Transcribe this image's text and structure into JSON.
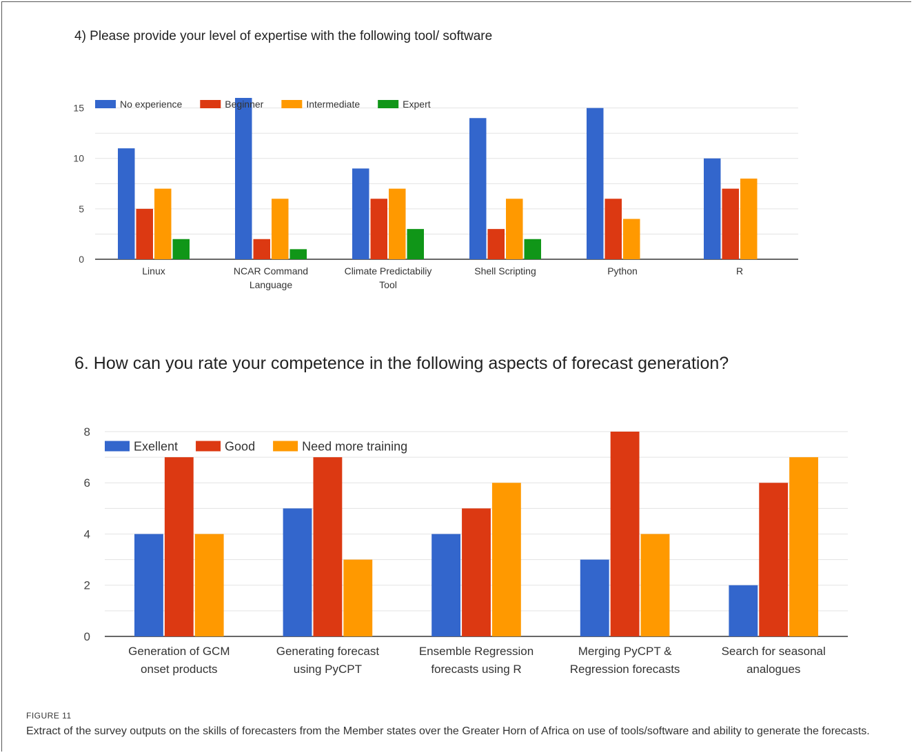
{
  "figure": {
    "label": "FIGURE 11",
    "caption": "Extract of the survey outputs on the skills of forecasters from the Member states over the Greater Horn of Africa on use of tools/software and ability to generate the forecasts."
  },
  "chart_data": [
    {
      "type": "bar",
      "title": "4) Please provide your level of expertise with the following tool/ software",
      "categories": [
        [
          "Linux"
        ],
        [
          "NCAR Command",
          "Language"
        ],
        [
          "Climate Predictabiliy",
          "Tool"
        ],
        [
          "Shell Scripting"
        ],
        [
          "Python"
        ],
        [
          "R"
        ]
      ],
      "series": [
        {
          "name": "No experience",
          "color": "#3366cc",
          "values": [
            11,
            16,
            9,
            14,
            15,
            10
          ]
        },
        {
          "name": "Beginner",
          "color": "#dc3912",
          "values": [
            5,
            2,
            6,
            3,
            6,
            7
          ]
        },
        {
          "name": "Intermediate",
          "color": "#ff9900",
          "values": [
            7,
            6,
            7,
            6,
            4,
            8
          ]
        },
        {
          "name": "Expert",
          "color": "#109618",
          "values": [
            2,
            1,
            3,
            2,
            0,
            0
          ]
        }
      ],
      "yticks": [
        0,
        5,
        10,
        15
      ],
      "ylim": [
        0,
        16
      ],
      "grid": true,
      "legend": "top-left"
    },
    {
      "type": "bar",
      "title": "6. How can you rate your competence in the following aspects of forecast generation?",
      "categories": [
        [
          "Generation of GCM",
          "onset products"
        ],
        [
          "Generating forecast",
          "using PyCPT"
        ],
        [
          "Ensemble Regression",
          "forecasts using R"
        ],
        [
          "Merging PyCPT &",
          "Regression forecasts"
        ],
        [
          "Search for seasonal",
          "analogues"
        ]
      ],
      "series": [
        {
          "name": "Exellent",
          "color": "#3366cc",
          "values": [
            4,
            5,
            4,
            3,
            2
          ]
        },
        {
          "name": "Good",
          "color": "#dc3912",
          "values": [
            7,
            7,
            5,
            8,
            6
          ]
        },
        {
          "name": "Need more training",
          "color": "#ff9900",
          "values": [
            4,
            3,
            6,
            4,
            7
          ]
        }
      ],
      "yticks": [
        0,
        2,
        4,
        6,
        8
      ],
      "ylim": [
        0,
        8
      ],
      "grid": true,
      "legend": "top-left"
    }
  ]
}
